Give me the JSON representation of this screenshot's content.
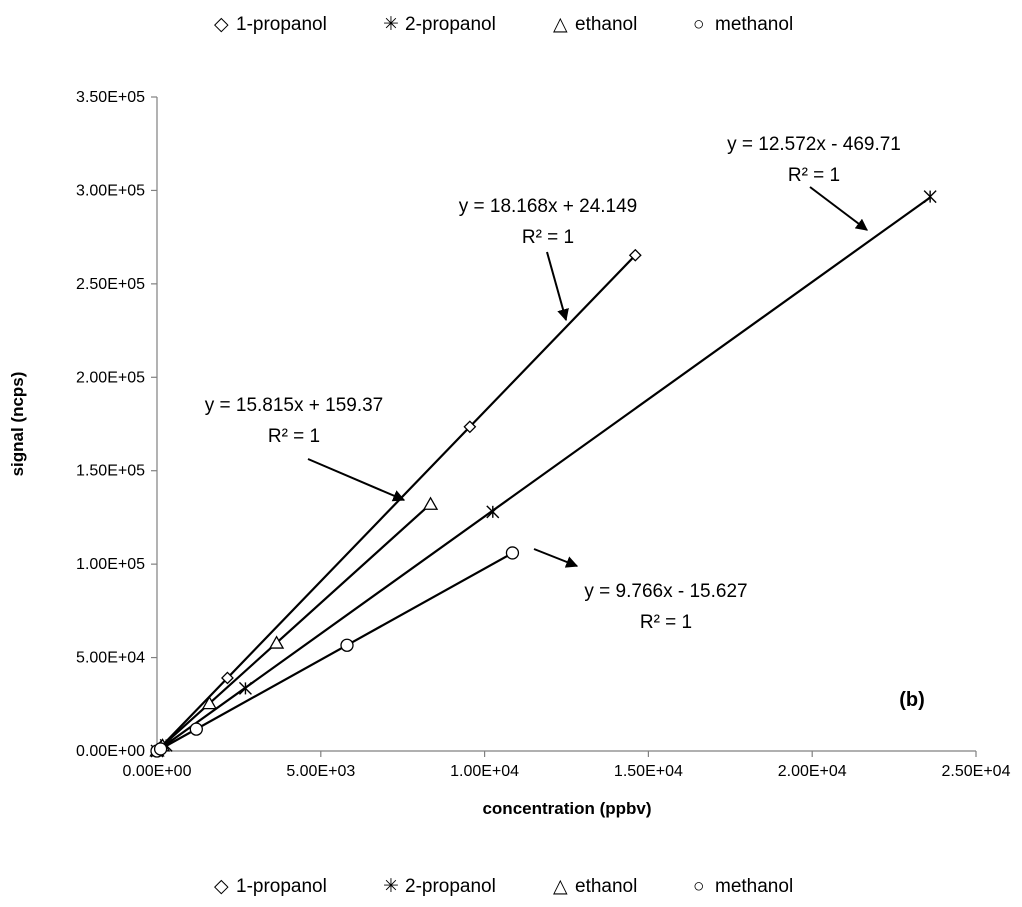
{
  "chart_data": {
    "type": "scatter",
    "title": "",
    "panel_label": "(b)",
    "xlabel": "concentration (ppbv)",
    "ylabel": "signal (ncps)",
    "xlim": [
      0,
      25000
    ],
    "ylim": [
      0,
      350000
    ],
    "x_ticks": [
      0,
      5000,
      10000,
      15000,
      20000,
      25000
    ],
    "x_tick_labels": [
      "0.00E+00",
      "5.00E+03",
      "1.00E+04",
      "1.50E+04",
      "2.00E+04",
      "2.50E+04"
    ],
    "y_ticks": [
      0,
      50000,
      100000,
      150000,
      200000,
      250000,
      300000,
      350000
    ],
    "y_tick_labels": [
      "0.00E+00",
      "5.00E+04",
      "1.00E+05",
      "1.50E+05",
      "2.00E+05",
      "2.50E+05",
      "3.00E+05",
      "3.50E+05"
    ],
    "grid": false,
    "legend_position": "top and bottom",
    "series": [
      {
        "name": "1-propanol",
        "marker": "diamond",
        "symbol": "◇",
        "points": [
          [
            0,
            0
          ],
          [
            140,
            2600
          ],
          [
            2150,
            39100
          ],
          [
            9550,
            173500
          ],
          [
            14600,
            265300
          ]
        ],
        "trendline": {
          "slope": 18.168,
          "intercept": 24.149,
          "label_line1": "y = 18.168x + 24.149",
          "label_line2": "R² = 1"
        }
      },
      {
        "name": "2-propanol",
        "marker": "star",
        "symbol": "✳",
        "points": [
          [
            0,
            0
          ],
          [
            280,
            3000
          ],
          [
            2700,
            33500
          ],
          [
            10250,
            128000
          ],
          [
            23600,
            296700
          ]
        ],
        "trendline": {
          "slope": 12.572,
          "intercept": -469.71,
          "label_line1": "y = 12.572x - 469.71",
          "label_line2": "R² = 1"
        }
      },
      {
        "name": "ethanol",
        "marker": "triangle",
        "symbol": "△",
        "points": [
          [
            0,
            0
          ],
          [
            170,
            2700
          ],
          [
            1600,
            25300
          ],
          [
            3650,
            57700
          ],
          [
            8350,
            132000
          ]
        ],
        "trendline": {
          "slope": 15.815,
          "intercept": 159.37,
          "label_line1": "y = 15.815x + 159.37",
          "label_line2": "R² = 1"
        }
      },
      {
        "name": "methanol",
        "marker": "circle",
        "symbol": "○",
        "points": [
          [
            0,
            0
          ],
          [
            110,
            1100
          ],
          [
            1200,
            11700
          ],
          [
            5800,
            56600
          ],
          [
            10850,
            106000
          ]
        ],
        "trendline": {
          "slope": 9.766,
          "intercept": -15.627,
          "label_line1": "y = 9.766x - 15.627",
          "label_line2": "R² = 1"
        }
      }
    ]
  }
}
